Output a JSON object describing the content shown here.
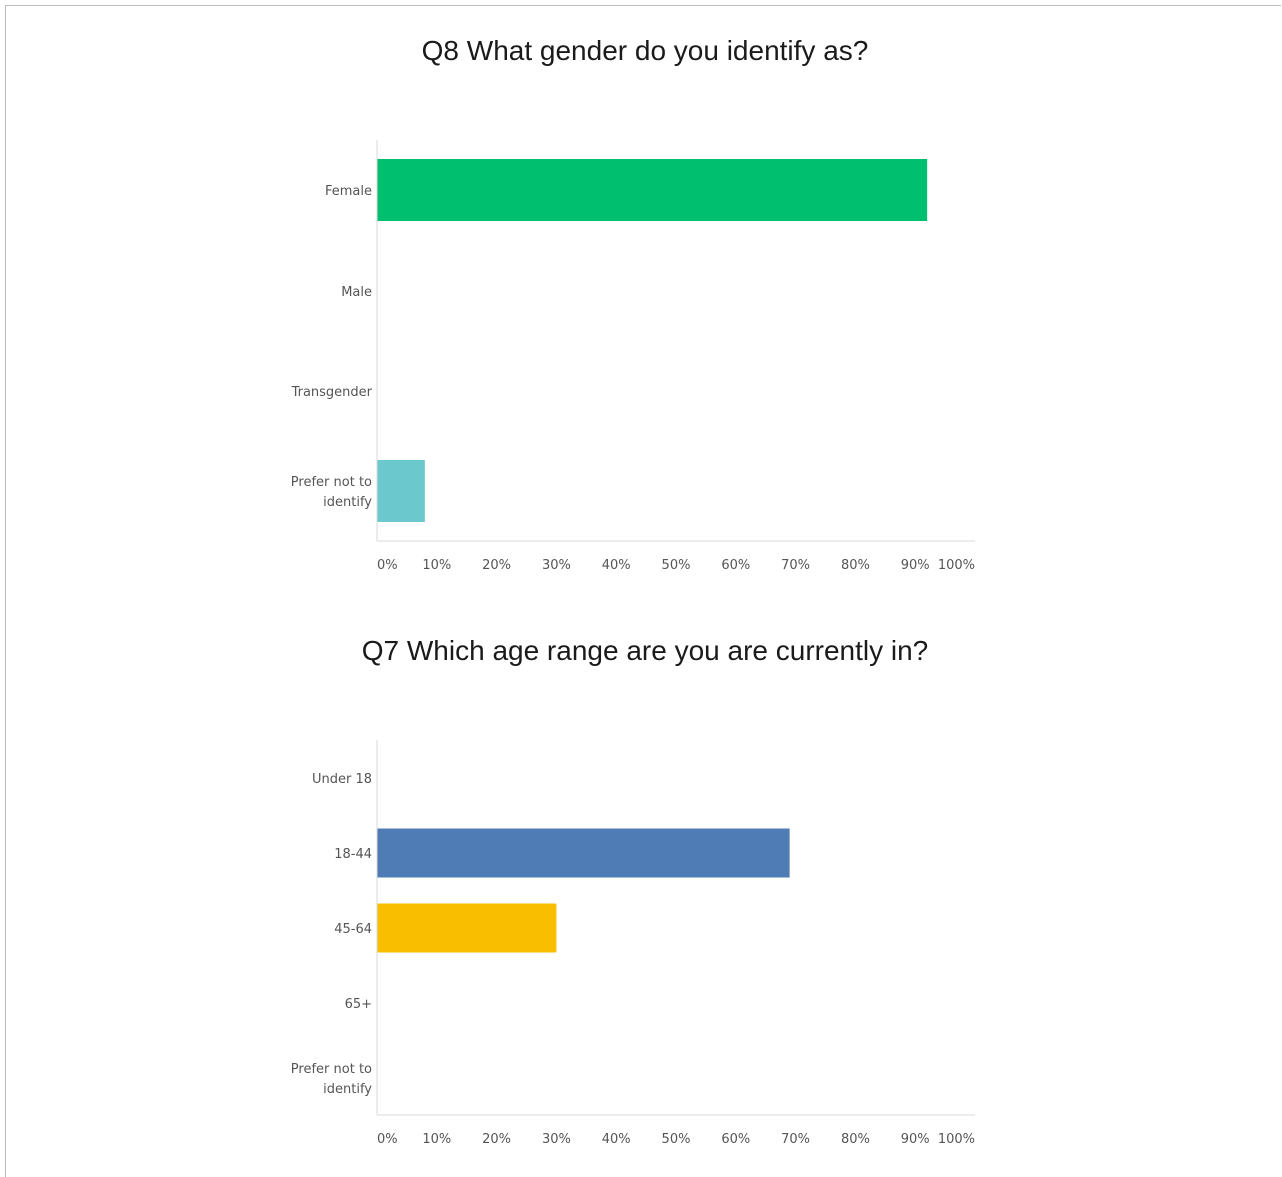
{
  "chart_data": [
    {
      "type": "bar",
      "orientation": "horizontal",
      "title": "Q8 What gender do you identify as?",
      "categories": [
        "Female",
        "Male",
        "Transgender",
        "Prefer not to identify"
      ],
      "category_labels": [
        [
          "Female"
        ],
        [
          "Male"
        ],
        [
          "Transgender"
        ],
        [
          "Prefer not to",
          "identify"
        ]
      ],
      "values": [
        92,
        0,
        0,
        8
      ],
      "colors": [
        "#00bf6f",
        "#00bf6f",
        "#00bf6f",
        "#6bc8cd"
      ],
      "xlim": [
        0,
        100
      ],
      "xticks": [
        "0%",
        "10%",
        "20%",
        "30%",
        "40%",
        "50%",
        "60%",
        "70%",
        "80%",
        "90%",
        "100%"
      ],
      "grid": false,
      "legend": "none"
    },
    {
      "type": "bar",
      "orientation": "horizontal",
      "title": "Q7 Which age range are you are currently in?",
      "categories": [
        "Under 18",
        "18-44",
        "45-64",
        "65+",
        "Prefer not to identify"
      ],
      "category_labels": [
        [
          "Under 18"
        ],
        [
          "18-44"
        ],
        [
          "45-64"
        ],
        [
          "65+"
        ],
        [
          "Prefer not to",
          "identify"
        ]
      ],
      "values": [
        0,
        69,
        30,
        0,
        0
      ],
      "colors": [
        "#507cb6",
        "#507cb6",
        "#f9be00",
        "#507cb6",
        "#507cb6"
      ],
      "xlim": [
        0,
        100
      ],
      "xticks": [
        "0%",
        "10%",
        "20%",
        "30%",
        "40%",
        "50%",
        "60%",
        "70%",
        "80%",
        "90%",
        "100%"
      ],
      "grid": false,
      "legend": "none"
    }
  ]
}
